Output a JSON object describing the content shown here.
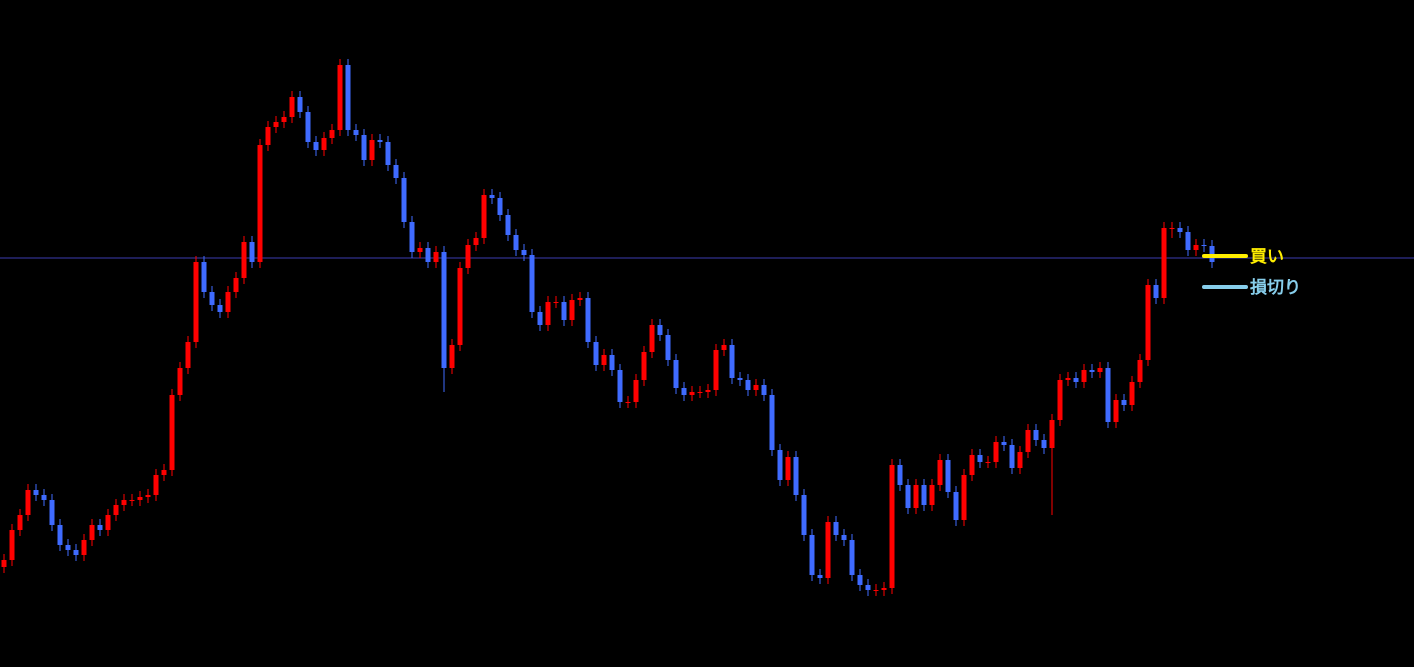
{
  "chart_data": {
    "type": "candlestick",
    "ylim": [
      0,
      667
    ],
    "up_color": "#ff0000",
    "down_color": "#3f6bff",
    "hline": {
      "value": 409,
      "color": "#3b3bb0"
    },
    "levels": [
      {
        "label": "買い",
        "value": 411,
        "color": "#ffee00"
      },
      {
        "label": "損切り",
        "value": 380,
        "color": "#87ceeb"
      }
    ],
    "open": [
      100,
      107,
      137,
      152,
      177,
      172,
      167,
      142,
      122,
      117,
      112,
      127,
      142,
      137,
      152,
      162,
      167,
      167,
      170,
      172,
      192,
      197,
      272,
      299,
      325,
      405,
      375,
      362,
      355,
      375,
      389,
      425,
      405,
      522,
      540,
      545,
      550,
      570,
      555,
      525,
      517,
      529,
      537,
      602,
      537,
      532,
      507,
      527,
      525,
      502,
      489,
      445,
      415,
      419,
      405,
      415,
      299,
      322,
      399,
      422,
      429,
      472,
      469,
      452,
      432,
      417,
      412,
      355,
      342,
      365,
      365,
      347,
      367,
      369,
      325,
      302,
      312,
      297,
      265,
      265,
      287,
      315,
      342,
      332,
      307,
      279,
      272,
      275,
      275,
      277,
      317,
      322,
      289,
      287,
      277,
      282,
      272,
      217,
      187,
      210,
      172,
      132,
      92,
      89,
      145,
      132,
      127,
      92,
      82,
      77,
      77,
      79,
      202,
      182,
      159,
      182,
      162,
      182,
      207,
      175,
      147,
      192,
      212,
      205,
      205,
      225,
      222,
      199,
      215,
      237,
      227,
      219,
      247,
      287,
      289,
      285,
      297,
      295,
      299,
      245,
      267,
      262,
      285,
      307,
      382,
      369,
      439,
      439,
      435,
      417,
      422,
      421
    ],
    "high": [
      113,
      143,
      158,
      183,
      183,
      178,
      173,
      148,
      128,
      123,
      133,
      148,
      148,
      158,
      168,
      173,
      173,
      176,
      178,
      198,
      203,
      278,
      305,
      331,
      411,
      411,
      381,
      368,
      381,
      395,
      431,
      431,
      528,
      546,
      551,
      556,
      576,
      576,
      561,
      531,
      535,
      543,
      608,
      608,
      543,
      538,
      533,
      533,
      531,
      508,
      495,
      451,
      425,
      425,
      421,
      421,
      328,
      405,
      428,
      435,
      478,
      478,
      475,
      458,
      438,
      423,
      418,
      361,
      371,
      371,
      371,
      373,
      375,
      375,
      331,
      318,
      318,
      303,
      271,
      293,
      321,
      348,
      348,
      338,
      313,
      285,
      281,
      281,
      283,
      323,
      328,
      328,
      295,
      293,
      288,
      288,
      278,
      223,
      216,
      216,
      178,
      138,
      98,
      151,
      151,
      138,
      133,
      98,
      88,
      83,
      85,
      208,
      208,
      188,
      188,
      188,
      188,
      213,
      213,
      181,
      198,
      218,
      218,
      211,
      231,
      231,
      228,
      221,
      243,
      243,
      233,
      253,
      293,
      295,
      295,
      303,
      303,
      305,
      305,
      273,
      273,
      291,
      313,
      388,
      388,
      445,
      445,
      445,
      441,
      428,
      428,
      427
    ],
    "low": [
      94,
      101,
      131,
      146,
      166,
      161,
      136,
      116,
      111,
      106,
      106,
      121,
      131,
      131,
      146,
      156,
      161,
      161,
      164,
      166,
      186,
      191,
      266,
      293,
      319,
      369,
      356,
      349,
      349,
      369,
      383,
      399,
      399,
      516,
      534,
      539,
      544,
      549,
      519,
      511,
      511,
      523,
      531,
      531,
      526,
      501,
      501,
      519,
      496,
      483,
      439,
      409,
      409,
      399,
      399,
      275,
      293,
      316,
      393,
      416,
      423,
      463,
      446,
      426,
      411,
      406,
      349,
      336,
      336,
      359,
      341,
      341,
      361,
      319,
      296,
      296,
      291,
      259,
      259,
      259,
      281,
      309,
      326,
      301,
      273,
      266,
      266,
      269,
      269,
      271,
      311,
      283,
      281,
      271,
      271,
      266,
      211,
      181,
      181,
      166,
      126,
      86,
      83,
      83,
      126,
      121,
      86,
      76,
      71,
      71,
      71,
      73,
      176,
      153,
      153,
      156,
      156,
      176,
      169,
      141,
      141,
      186,
      199,
      199,
      199,
      216,
      193,
      193,
      209,
      221,
      213,
      152,
      241,
      281,
      279,
      279,
      289,
      289,
      239,
      239,
      256,
      256,
      279,
      301,
      363,
      363,
      429,
      429,
      411,
      411,
      415,
      399
    ],
    "close": [
      107,
      137,
      152,
      177,
      172,
      167,
      142,
      122,
      117,
      112,
      127,
      142,
      137,
      152,
      162,
      167,
      167,
      170,
      172,
      192,
      197,
      272,
      299,
      325,
      405,
      375,
      362,
      355,
      375,
      389,
      425,
      405,
      522,
      540,
      545,
      550,
      570,
      555,
      525,
      517,
      529,
      537,
      602,
      537,
      532,
      507,
      527,
      525,
      502,
      489,
      445,
      415,
      419,
      405,
      415,
      299,
      322,
      399,
      422,
      429,
      472,
      469,
      452,
      432,
      417,
      412,
      355,
      342,
      365,
      365,
      347,
      367,
      369,
      325,
      302,
      312,
      297,
      265,
      265,
      287,
      315,
      342,
      332,
      307,
      279,
      272,
      275,
      275,
      277,
      317,
      322,
      289,
      287,
      277,
      282,
      272,
      217,
      187,
      210,
      172,
      132,
      92,
      89,
      145,
      132,
      127,
      92,
      82,
      77,
      77,
      79,
      202,
      182,
      159,
      182,
      162,
      182,
      207,
      175,
      147,
      192,
      212,
      205,
      205,
      225,
      222,
      199,
      215,
      237,
      227,
      219,
      247,
      287,
      289,
      285,
      297,
      295,
      299,
      245,
      267,
      262,
      285,
      307,
      382,
      369,
      439,
      439,
      435,
      417,
      422,
      421,
      405
    ]
  }
}
